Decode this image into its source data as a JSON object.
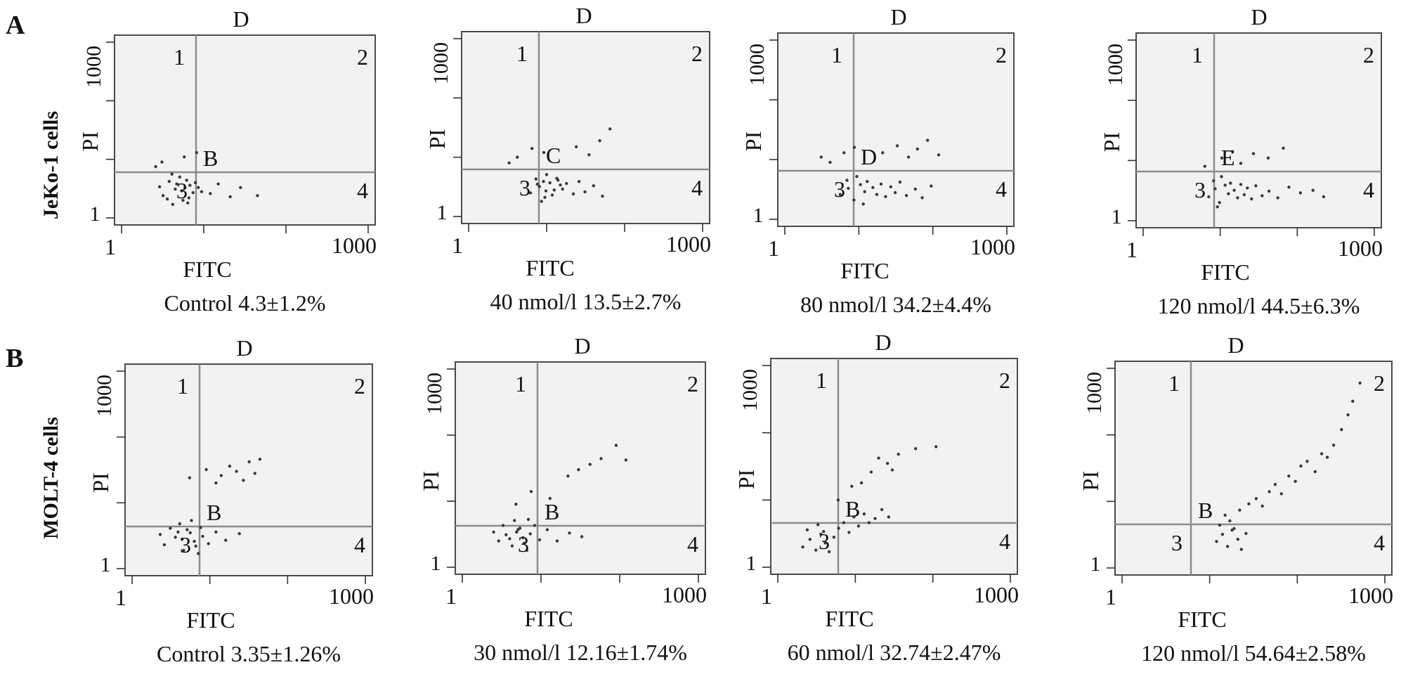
{
  "figure": {
    "panel_labels": [
      "A",
      "B"
    ],
    "row_labels": [
      "JeKo-1 cells",
      "MOLT-4 cells"
    ]
  },
  "chart_data": [
    {
      "type": "scatter",
      "row": 0,
      "panel": "A",
      "condition": "Control",
      "value_text": "4.3±1.2%",
      "top_label": "D",
      "center_letter": "B",
      "quadrant_labels": [
        "1",
        "2",
        "3",
        "4"
      ],
      "xlabel": "FITC",
      "ylabel": "PI",
      "x_ticks": [
        "1",
        "1000"
      ],
      "y_ticks": [
        "1",
        "1000"
      ],
      "xlim": [
        1,
        1000
      ],
      "ylim": [
        1,
        1000
      ],
      "x_scale": "log",
      "y_scale": "log",
      "apoptosis_percent": 4.3,
      "sd_percent": 1.2,
      "points": [
        [
          3.2,
          2.4
        ],
        [
          4.5,
          3.1
        ],
        [
          5.6,
          2.0
        ],
        [
          6.8,
          3.6
        ],
        [
          3.8,
          4.2
        ],
        [
          7.4,
          2.7
        ],
        [
          5.1,
          5.0
        ],
        [
          4.2,
          1.7
        ],
        [
          6.2,
          4.4
        ],
        [
          8.6,
          3.3
        ],
        [
          2.9,
          3.4
        ],
        [
          5.4,
          2.9
        ],
        [
          6.6,
          2.2
        ],
        [
          4.7,
          3.8
        ],
        [
          7.9,
          4.0
        ],
        [
          3.6,
          2.1
        ],
        [
          5.9,
          3.3
        ],
        [
          4.1,
          5.6
        ],
        [
          9.4,
          2.8
        ],
        [
          6.4,
          1.8
        ],
        [
          12,
          2.6
        ],
        [
          15,
          3.8
        ],
        [
          21,
          2.3
        ],
        [
          28,
          3.3
        ],
        [
          45,
          2.4
        ],
        [
          3.1,
          9
        ],
        [
          5.8,
          11
        ],
        [
          8.2,
          13
        ],
        [
          2.6,
          7.5
        ],
        [
          11,
          10
        ]
      ]
    },
    {
      "type": "scatter",
      "row": 0,
      "panel": "A",
      "condition": "40 nmol/l",
      "value_text": "13.5±2.7%",
      "top_label": "D",
      "center_letter": "C",
      "quadrant_labels": [
        "1",
        "2",
        "3",
        "4"
      ],
      "xlabel": "FITC",
      "ylabel": "PI",
      "x_ticks": [
        "1",
        "1000"
      ],
      "y_ticks": [
        "1",
        "1000"
      ],
      "xlim": [
        1,
        1000
      ],
      "ylim": [
        1,
        1000
      ],
      "x_scale": "log",
      "y_scale": "log",
      "apoptosis_percent": 13.5,
      "sd_percent": 2.7,
      "points": [
        [
          6.2,
          2.5
        ],
        [
          8.1,
          3.2
        ],
        [
          9.5,
          2.1
        ],
        [
          11,
          3.7
        ],
        [
          7.3,
          4.3
        ],
        [
          12.5,
          2.8
        ],
        [
          10,
          5.1
        ],
        [
          8.6,
          1.8
        ],
        [
          13.5,
          4.4
        ],
        [
          15,
          3.4
        ],
        [
          7.6,
          3.5
        ],
        [
          9.8,
          2.7
        ],
        [
          11.8,
          2.3
        ],
        [
          9.1,
          3.9
        ],
        [
          14,
          4.1
        ],
        [
          16,
          2.9
        ],
        [
          18,
          3.6
        ],
        [
          22,
          2.4
        ],
        [
          26,
          3.9
        ],
        [
          31,
          2.6
        ],
        [
          40,
          3.3
        ],
        [
          52,
          2.2
        ],
        [
          4.2,
          10
        ],
        [
          6.5,
          14
        ],
        [
          9.2,
          12
        ],
        [
          24,
          15
        ],
        [
          35,
          11
        ],
        [
          48,
          19
        ],
        [
          65,
          30
        ],
        [
          3.3,
          8
        ]
      ]
    },
    {
      "type": "scatter",
      "row": 0,
      "panel": "A",
      "condition": "80 nmol/l",
      "value_text": "34.2±4.4%",
      "top_label": "D",
      "center_letter": "D",
      "quadrant_labels": [
        "1",
        "2",
        "3",
        "4"
      ],
      "xlabel": "FITC",
      "ylabel": "PI",
      "x_ticks": [
        "1",
        "1000"
      ],
      "y_ticks": [
        "1",
        "1000"
      ],
      "xlim": [
        1,
        1000
      ],
      "ylim": [
        1,
        1000
      ],
      "x_scale": "log",
      "y_scale": "log",
      "apoptosis_percent": 34.2,
      "sd_percent": 4.4,
      "points": [
        [
          5.6,
          2.6
        ],
        [
          7.2,
          3.3
        ],
        [
          8.6,
          2.1
        ],
        [
          10.5,
          3.8
        ],
        [
          6.9,
          4.5
        ],
        [
          12,
          2.9
        ],
        [
          9.4,
          5.2
        ],
        [
          11.5,
          1.8
        ],
        [
          13,
          4.3
        ],
        [
          15.5,
          3.4
        ],
        [
          17.5,
          2.6
        ],
        [
          20,
          3.9
        ],
        [
          23,
          2.4
        ],
        [
          27,
          3.5
        ],
        [
          31,
          2.8
        ],
        [
          36,
          4.2
        ],
        [
          44,
          2.5
        ],
        [
          58,
          3.2
        ],
        [
          72,
          2.3
        ],
        [
          95,
          3.6
        ],
        [
          4.1,
          9
        ],
        [
          6.3,
          13
        ],
        [
          8.7,
          16
        ],
        [
          3.1,
          11
        ],
        [
          21,
          13
        ],
        [
          33,
          17
        ],
        [
          47,
          11
        ],
        [
          62,
          15
        ],
        [
          85,
          21
        ],
        [
          120,
          12
        ]
      ]
    },
    {
      "type": "scatter",
      "row": 0,
      "panel": "A",
      "condition": "120 nmol/l",
      "value_text": "44.5±6.3%",
      "top_label": "D",
      "center_letter": "E",
      "quadrant_labels": [
        "1",
        "2",
        "3",
        "4"
      ],
      "xlabel": "FITC",
      "ylabel": "PI",
      "x_ticks": [
        "1",
        "1000"
      ],
      "y_ticks": [
        "1",
        "1000"
      ],
      "xlim": [
        1,
        1000
      ],
      "ylim": [
        1,
        1000
      ],
      "x_scale": "log",
      "y_scale": "log",
      "apoptosis_percent": 44.5,
      "sd_percent": 6.3,
      "points": [
        [
          7.1,
          2.5
        ],
        [
          8.6,
          3.4
        ],
        [
          9.8,
          2.0
        ],
        [
          11.6,
          3.9
        ],
        [
          8.2,
          4.6
        ],
        [
          12.8,
          2.8
        ],
        [
          10.4,
          5.4
        ],
        [
          9.2,
          1.7
        ],
        [
          13.6,
          4.2
        ],
        [
          15.2,
          3.2
        ],
        [
          16.8,
          2.4
        ],
        [
          18.5,
          4.0
        ],
        [
          20.5,
          2.7
        ],
        [
          22.5,
          3.5
        ],
        [
          25.5,
          2.3
        ],
        [
          29,
          3.8
        ],
        [
          35,
          2.6
        ],
        [
          43,
          3.1
        ],
        [
          56,
          2.4
        ],
        [
          78,
          3.6
        ],
        [
          110,
          2.9
        ],
        [
          160,
          3.2
        ],
        [
          220,
          2.5
        ],
        [
          6.3,
          8
        ],
        [
          10.5,
          11
        ],
        [
          14.5,
          14
        ],
        [
          18.5,
          9
        ],
        [
          27,
          13
        ],
        [
          42,
          11
        ],
        [
          66,
          16
        ]
      ]
    },
    {
      "type": "scatter",
      "row": 1,
      "panel": "B",
      "condition": "Control",
      "value_text": "3.35±1.26%",
      "top_label": "D",
      "center_letter": "B",
      "quadrant_labels": [
        "1",
        "2",
        "3",
        "4"
      ],
      "xlabel": "FITC",
      "ylabel": "PI",
      "x_ticks": [
        "1",
        "1000"
      ],
      "y_ticks": [
        "1",
        "1000"
      ],
      "xlim": [
        1,
        1000
      ],
      "ylim": [
        1,
        1000
      ],
      "x_scale": "log",
      "y_scale": "log",
      "apoptosis_percent": 3.35,
      "sd_percent": 1.26,
      "points": [
        [
          2.6,
          2.3
        ],
        [
          3.6,
          3.0
        ],
        [
          4.6,
          1.9
        ],
        [
          5.6,
          3.5
        ],
        [
          3.1,
          4.1
        ],
        [
          6.3,
          2.6
        ],
        [
          4.1,
          4.8
        ],
        [
          7.1,
          1.7
        ],
        [
          5.1,
          3.9
        ],
        [
          8.1,
          3.1
        ],
        [
          2.3,
          3.3
        ],
        [
          4.4,
          2.8
        ],
        [
          6.6,
          2.2
        ],
        [
          3.9,
          3.6
        ],
        [
          7.6,
          4.2
        ],
        [
          5.8,
          5.4
        ],
        [
          9.6,
          2.4
        ],
        [
          12,
          3.6
        ],
        [
          16,
          2.7
        ],
        [
          24,
          3.4
        ],
        [
          14,
          26
        ],
        [
          18,
          36
        ],
        [
          22,
          30
        ],
        [
          27,
          22
        ],
        [
          32,
          42
        ],
        [
          38,
          28
        ],
        [
          44,
          46
        ],
        [
          9,
          32
        ],
        [
          12,
          20
        ],
        [
          5.5,
          24
        ]
      ]
    },
    {
      "type": "scatter",
      "row": 1,
      "panel": "B",
      "condition": "30 nmol/l",
      "value_text": "12.16±1.74%",
      "top_label": "D",
      "center_letter": "B",
      "quadrant_labels": [
        "1",
        "2",
        "3",
        "4"
      ],
      "xlabel": "FITC",
      "ylabel": "PI",
      "x_ticks": [
        "1",
        "1000"
      ],
      "y_ticks": [
        "1",
        "1000"
      ],
      "xlim": [
        1,
        1000
      ],
      "ylim": [
        1,
        1000
      ],
      "x_scale": "log",
      "y_scale": "log",
      "apoptosis_percent": 12.16,
      "sd_percent": 1.74,
      "points": [
        [
          2.9,
          2.5
        ],
        [
          3.6,
          3.1
        ],
        [
          4.3,
          2.1
        ],
        [
          5.1,
          3.7
        ],
        [
          3.3,
          4.3
        ],
        [
          5.9,
          2.8
        ],
        [
          4.6,
          5.1
        ],
        [
          6.6,
          1.8
        ],
        [
          5.4,
          3.9
        ],
        [
          7.3,
          3.2
        ],
        [
          2.5,
          3.4
        ],
        [
          4.0,
          2.7
        ],
        [
          6.1,
          2.3
        ],
        [
          4.9,
          3.4
        ],
        [
          8.3,
          4.3
        ],
        [
          6.9,
          5.3
        ],
        [
          9.6,
          2.6
        ],
        [
          12,
          3.7
        ],
        [
          16,
          2.5
        ],
        [
          23,
          3.3
        ],
        [
          33,
          2.9
        ],
        [
          22,
          24
        ],
        [
          30,
          30
        ],
        [
          42,
          36
        ],
        [
          58,
          44
        ],
        [
          90,
          70
        ],
        [
          120,
          42
        ],
        [
          7.5,
          14
        ],
        [
          4.8,
          9
        ],
        [
          13,
          11
        ]
      ]
    },
    {
      "type": "scatter",
      "row": 1,
      "panel": "B",
      "condition": "60 nmol/l",
      "value_text": "32.74±2.47%",
      "top_label": "D",
      "center_letter": "B",
      "quadrant_labels": [
        "1",
        "2",
        "3",
        "4"
      ],
      "xlabel": "FITC",
      "ylabel": "PI",
      "x_ticks": [
        "1",
        "1000"
      ],
      "y_ticks": [
        "1",
        "1000"
      ],
      "xlim": [
        1,
        1000
      ],
      "ylim": [
        1,
        1000
      ],
      "x_scale": "log",
      "y_scale": "log",
      "apoptosis_percent": 32.74,
      "sd_percent": 2.47,
      "points": [
        [
          2.1,
          2.0
        ],
        [
          2.6,
          2.6
        ],
        [
          3.1,
          1.8
        ],
        [
          3.6,
          3.1
        ],
        [
          2.4,
          3.6
        ],
        [
          4.1,
          2.3
        ],
        [
          3.3,
          4.3
        ],
        [
          4.6,
          1.7
        ],
        [
          3.9,
          3.4
        ],
        [
          5.3,
          2.8
        ],
        [
          6.1,
          3.8
        ],
        [
          7.1,
          4.6
        ],
        [
          8.3,
          3.3
        ],
        [
          9.6,
          5.6
        ],
        [
          11,
          4.1
        ],
        [
          13,
          6.2
        ],
        [
          15,
          4.6
        ],
        [
          18,
          5.3
        ],
        [
          22,
          7.2
        ],
        [
          27,
          5.6
        ],
        [
          12,
          18
        ],
        [
          16,
          26
        ],
        [
          20,
          42
        ],
        [
          26,
          35
        ],
        [
          36,
          48
        ],
        [
          30,
          28
        ],
        [
          60,
          58
        ],
        [
          110,
          62
        ],
        [
          6,
          10
        ],
        [
          9,
          16
        ]
      ]
    },
    {
      "type": "scatter",
      "row": 1,
      "panel": "B",
      "condition": "120 nmol/l",
      "value_text": "54.64±2.58%",
      "top_label": "D",
      "center_letter": "B",
      "quadrant_labels": [
        "1",
        "2",
        "3",
        "4"
      ],
      "xlabel": "FITC",
      "ylabel": "PI",
      "x_ticks": [
        "1",
        "1000"
      ],
      "y_ticks": [
        "1",
        "1000"
      ],
      "xlim": [
        1,
        1000
      ],
      "ylim": [
        1,
        1000
      ],
      "x_scale": "log",
      "y_scale": "log",
      "apoptosis_percent": 54.64,
      "sd_percent": 2.58,
      "points": [
        [
          12,
          2.5
        ],
        [
          14,
          3.2
        ],
        [
          16,
          2.1
        ],
        [
          18,
          3.7
        ],
        [
          13,
          4.4
        ],
        [
          21,
          2.7
        ],
        [
          17,
          5.1
        ],
        [
          23,
          1.9
        ],
        [
          19,
          3.9
        ],
        [
          26,
          3.3
        ],
        [
          15,
          6.2
        ],
        [
          22,
          7.4
        ],
        [
          28,
          9.2
        ],
        [
          34,
          11
        ],
        [
          40,
          8.5
        ],
        [
          48,
          14
        ],
        [
          56,
          18
        ],
        [
          66,
          13
        ],
        [
          80,
          24
        ],
        [
          95,
          20
        ],
        [
          110,
          34
        ],
        [
          130,
          40
        ],
        [
          160,
          28
        ],
        [
          190,
          52
        ],
        [
          220,
          46
        ],
        [
          260,
          70
        ],
        [
          320,
          120
        ],
        [
          380,
          200
        ],
        [
          430,
          320
        ],
        [
          520,
          600
        ]
      ]
    }
  ]
}
